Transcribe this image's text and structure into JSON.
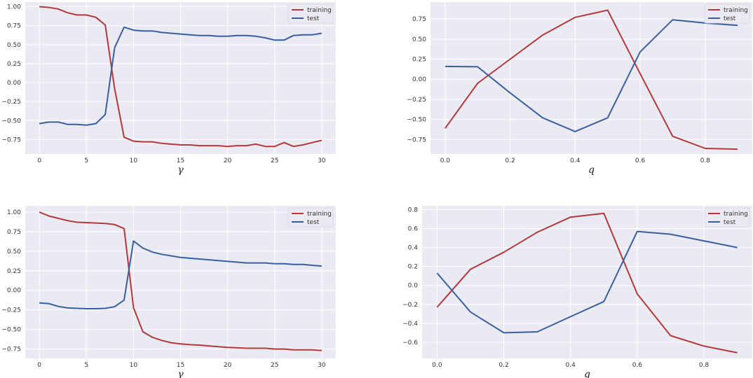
{
  "colors": {
    "training": "#b3383d",
    "test": "#3a5f9e"
  },
  "chart_data": [
    {
      "type": "line",
      "xlabel": "γ",
      "xlim": [
        -1.5,
        31.5
      ],
      "ylim": [
        -0.94,
        1.06
      ],
      "xticks": [
        0,
        5,
        10,
        15,
        20,
        25,
        30
      ],
      "xtick_labels": [
        "0",
        "5",
        "10",
        "15",
        "20",
        "25",
        "30"
      ],
      "yticks": [
        -0.75,
        -0.5,
        -0.25,
        0.0,
        0.25,
        0.5,
        0.75,
        1.0
      ],
      "ytick_labels": [
        "−0.75",
        "−0.50",
        "−0.25",
        "0.00",
        "0.25",
        "0.50",
        "0.75",
        "1.00"
      ],
      "grid": true,
      "legend": "top-right",
      "x": [
        0,
        1,
        2,
        3,
        4,
        5,
        6,
        7,
        8,
        9,
        10,
        11,
        12,
        13,
        14,
        15,
        16,
        17,
        18,
        19,
        20,
        21,
        22,
        23,
        24,
        25,
        26,
        27,
        28,
        29,
        30
      ],
      "series": [
        {
          "name": "training",
          "values": [
            1.0,
            0.99,
            0.97,
            0.92,
            0.89,
            0.89,
            0.86,
            0.76,
            -0.08,
            -0.72,
            -0.77,
            -0.78,
            -0.78,
            -0.8,
            -0.81,
            -0.82,
            -0.82,
            -0.83,
            -0.83,
            -0.83,
            -0.84,
            -0.83,
            -0.83,
            -0.81,
            -0.84,
            -0.84,
            -0.79,
            -0.84,
            -0.82,
            -0.79,
            -0.76
          ]
        },
        {
          "name": "test",
          "values": [
            -0.54,
            -0.52,
            -0.52,
            -0.55,
            -0.55,
            -0.56,
            -0.54,
            -0.42,
            0.46,
            0.73,
            0.69,
            0.68,
            0.68,
            0.66,
            0.65,
            0.64,
            0.63,
            0.62,
            0.62,
            0.61,
            0.61,
            0.62,
            0.62,
            0.61,
            0.59,
            0.56,
            0.56,
            0.62,
            0.63,
            0.63,
            0.65
          ]
        }
      ]
    },
    {
      "type": "line",
      "xlabel": "q",
      "xlim": [
        -0.045,
        0.945
      ],
      "ylim": [
        -0.93,
        0.96
      ],
      "xticks": [
        0.0,
        0.2,
        0.4,
        0.6,
        0.8
      ],
      "xtick_labels": [
        "0.0",
        "0.2",
        "0.4",
        "0.6",
        "0.8"
      ],
      "yticks": [
        -0.75,
        -0.5,
        -0.25,
        0.0,
        0.25,
        0.5,
        0.75
      ],
      "ytick_labels": [
        "−0.75",
        "−0.50",
        "−0.25",
        "0.00",
        "0.25",
        "0.50",
        "0.75"
      ],
      "grid": true,
      "legend": "top-right",
      "x": [
        0.0,
        0.1,
        0.2,
        0.3,
        0.4,
        0.5,
        0.6,
        0.7,
        0.8,
        0.9
      ],
      "series": [
        {
          "name": "training",
          "values": [
            -0.61,
            -0.05,
            0.25,
            0.55,
            0.77,
            0.86,
            0.07,
            -0.71,
            -0.86,
            -0.87
          ]
        },
        {
          "name": "test",
          "values": [
            0.16,
            0.155,
            -0.17,
            -0.48,
            -0.65,
            -0.48,
            0.34,
            0.74,
            0.7,
            0.67
          ]
        }
      ]
    },
    {
      "type": "line",
      "xlabel": "γ",
      "xlim": [
        -1.5,
        31.5
      ],
      "ylim": [
        -0.87,
        1.08
      ],
      "xticks": [
        0,
        5,
        10,
        15,
        20,
        25,
        30
      ],
      "xtick_labels": [
        "0",
        "5",
        "10",
        "15",
        "20",
        "25",
        "30"
      ],
      "yticks": [
        -0.75,
        -0.5,
        -0.25,
        0.0,
        0.25,
        0.5,
        0.75,
        1.0
      ],
      "ytick_labels": [
        "−0.75",
        "−0.50",
        "−0.25",
        "0.00",
        "0.25",
        "0.50",
        "0.75",
        "1.00"
      ],
      "grid": true,
      "legend": "top-right",
      "x": [
        0,
        1,
        2,
        3,
        4,
        5,
        6,
        7,
        8,
        9,
        10,
        11,
        12,
        13,
        14,
        15,
        16,
        17,
        18,
        19,
        20,
        21,
        22,
        23,
        24,
        25,
        26,
        27,
        28,
        29,
        30
      ],
      "series": [
        {
          "name": "training",
          "values": [
            1.0,
            0.95,
            0.92,
            0.89,
            0.87,
            0.865,
            0.86,
            0.855,
            0.84,
            0.79,
            -0.22,
            -0.53,
            -0.6,
            -0.64,
            -0.67,
            -0.685,
            -0.695,
            -0.7,
            -0.71,
            -0.72,
            -0.73,
            -0.735,
            -0.74,
            -0.74,
            -0.74,
            -0.75,
            -0.75,
            -0.76,
            -0.76,
            -0.76,
            -0.77
          ]
        },
        {
          "name": "test",
          "values": [
            -0.16,
            -0.17,
            -0.205,
            -0.225,
            -0.23,
            -0.235,
            -0.235,
            -0.23,
            -0.21,
            -0.125,
            0.63,
            0.54,
            0.49,
            0.46,
            0.44,
            0.42,
            0.41,
            0.4,
            0.39,
            0.38,
            0.37,
            0.36,
            0.35,
            0.35,
            0.35,
            0.34,
            0.34,
            0.33,
            0.33,
            0.32,
            0.31
          ]
        }
      ]
    },
    {
      "type": "line",
      "xlabel": "q",
      "xlim": [
        -0.045,
        0.945
      ],
      "ylim": [
        -0.77,
        0.84
      ],
      "xticks": [
        0.0,
        0.2,
        0.4,
        0.6,
        0.8
      ],
      "xtick_labels": [
        "0.0",
        "0.2",
        "0.4",
        "0.6",
        "0.8"
      ],
      "yticks": [
        -0.6,
        -0.4,
        -0.2,
        0.0,
        0.2,
        0.4,
        0.6,
        0.8
      ],
      "ytick_labels": [
        "−0.6",
        "−0.4",
        "−0.2",
        "0.0",
        "0.2",
        "0.4",
        "0.6",
        "0.8"
      ],
      "grid": true,
      "legend": "top-right",
      "x": [
        0.0,
        0.1,
        0.2,
        0.3,
        0.4,
        0.5,
        0.6,
        0.7,
        0.8,
        0.9
      ],
      "series": [
        {
          "name": "training",
          "values": [
            -0.23,
            0.17,
            0.35,
            0.56,
            0.72,
            0.76,
            -0.09,
            -0.53,
            -0.64,
            -0.71
          ]
        },
        {
          "name": "test",
          "values": [
            0.13,
            -0.28,
            -0.5,
            -0.49,
            -0.33,
            -0.17,
            0.57,
            0.54,
            0.47,
            0.4
          ]
        }
      ]
    }
  ]
}
